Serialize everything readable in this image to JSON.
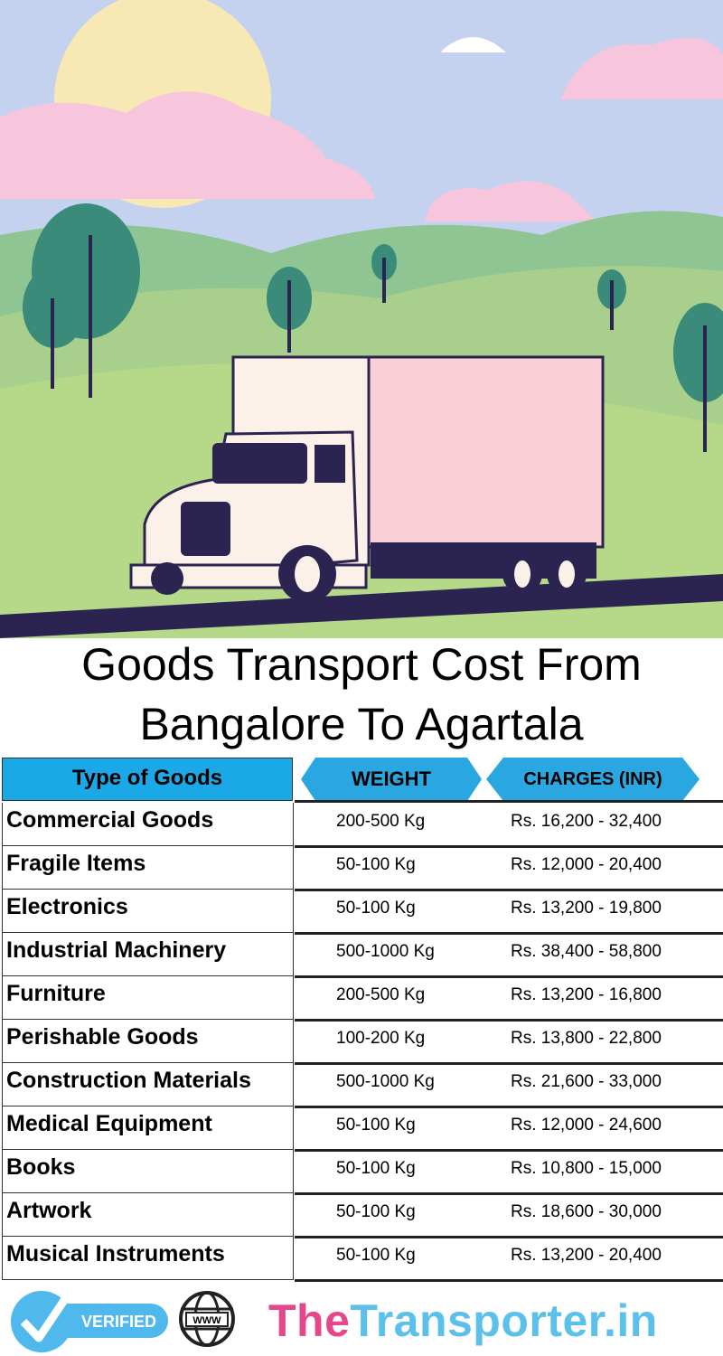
{
  "title": {
    "line1": "Goods Transport Cost From",
    "line2": "Bangalore To Agartala"
  },
  "table": {
    "headers": {
      "type": "Type of Goods",
      "weight": "WEIGHT",
      "charges": "CHARGES (INR)"
    },
    "header_color": "#1aa9e6",
    "rows": [
      {
        "type": "Commercial Goods",
        "weight": "200-500 Kg",
        "charges": "Rs. 16,200 - 32,400"
      },
      {
        "type": "Fragile Items",
        "weight": "50-100 Kg",
        "charges": "Rs. 12,000 - 20,400"
      },
      {
        "type": "Electronics",
        "weight": "50-100 Kg",
        "charges": "Rs. 13,200 - 19,800"
      },
      {
        "type": "Industrial Machinery",
        "weight": "500-1000 Kg",
        "charges": "Rs. 38,400 - 58,800"
      },
      {
        "type": "Furniture",
        "weight": "200-500 Kg",
        "charges": "Rs. 13,200 - 16,800"
      },
      {
        "type": "Perishable Goods",
        "weight": "100-200 Kg",
        "charges": "Rs. 13,800 - 22,800"
      },
      {
        "type": "Construction Materials",
        "weight": "500-1000 Kg",
        "charges": "Rs. 21,600 - 33,000"
      },
      {
        "type": "Medical Equipment",
        "weight": "50-100 Kg",
        "charges": "Rs. 12,000 - 24,600"
      },
      {
        "type": "Books",
        "weight": "50-100 Kg",
        "charges": "Rs. 10,800 - 15,000"
      },
      {
        "type": "Artwork",
        "weight": "50-100 Kg",
        "charges": "Rs. 18,600 - 30,000"
      },
      {
        "type": "Musical Instruments",
        "weight": "50-100 Kg",
        "charges": "Rs. 13,200 - 20,400"
      }
    ]
  },
  "footer": {
    "verified_label": "VERIFIED",
    "globe_label": "WWW",
    "brand_part1": "The",
    "brand_part2": "Transporter.in",
    "brand_colors": {
      "part1": "#e5488a",
      "part2": "#5cc1ea"
    }
  },
  "illustration": {
    "subject": "truck-on-road",
    "icons": [
      "verified-check-icon",
      "globe-www-icon"
    ]
  }
}
